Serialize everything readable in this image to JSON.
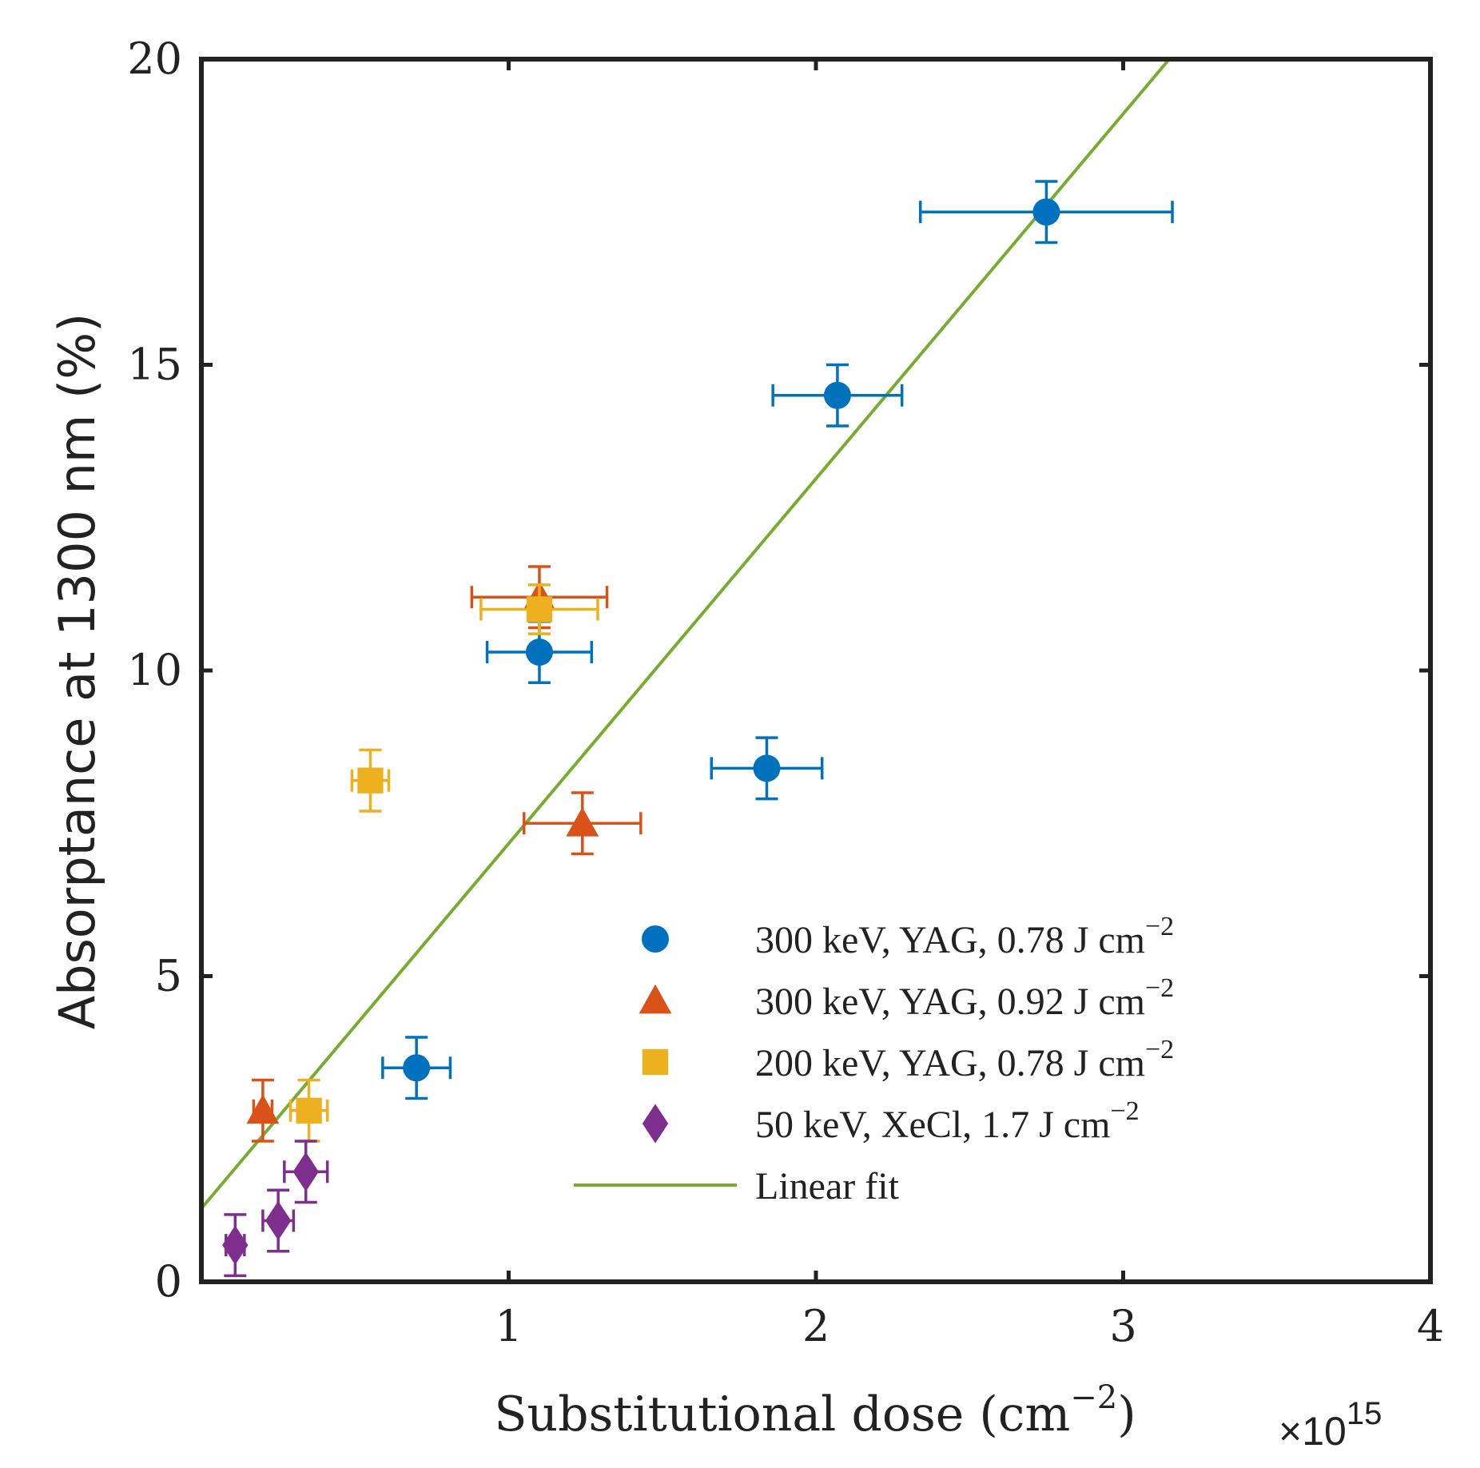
{
  "chart_data": {
    "type": "scatter",
    "title": "",
    "xlabel": "Substitutional dose (cm",
    "xlabel_sup": "−2",
    "xlabel_close": ")",
    "ylabel": "Absorptance at 1300 nm (%)",
    "x_multiplier": "×10",
    "x_multiplier_exp": "15",
    "xlim": [
      0,
      4
    ],
    "ylim": [
      0,
      20
    ],
    "xticks": [
      1,
      2,
      3,
      4
    ],
    "xtick_labels": [
      "1",
      "2",
      "3",
      "4"
    ],
    "yticks": [
      0,
      5,
      10,
      15,
      20
    ],
    "ytick_labels": [
      "0",
      "5",
      "10",
      "15",
      "20"
    ],
    "grid": false,
    "legend_position": "bottom-right",
    "series": [
      {
        "name": "300 keV, YAG, 0.78 J cm",
        "name_sup": "−2",
        "marker": "circle",
        "color": "#0072BD",
        "points": [
          {
            "x": 2.75,
            "y": 17.5,
            "xerr": 0.41,
            "yerr": 0.5
          },
          {
            "x": 2.07,
            "y": 14.5,
            "xerr": 0.21,
            "yerr": 0.5
          },
          {
            "x": 1.1,
            "y": 10.3,
            "xerr": 0.17,
            "yerr": 0.5
          },
          {
            "x": 1.84,
            "y": 8.4,
            "xerr": 0.18,
            "yerr": 0.5
          },
          {
            "x": 0.7,
            "y": 3.5,
            "xerr": 0.11,
            "yerr": 0.5
          }
        ]
      },
      {
        "name": "300 keV, YAG, 0.92 J cm",
        "name_sup": "−2",
        "marker": "triangle",
        "color": "#D95319",
        "points": [
          {
            "x": 1.1,
            "y": 11.2,
            "xerr": 0.22,
            "yerr": 0.5
          },
          {
            "x": 1.24,
            "y": 7.5,
            "xerr": 0.19,
            "yerr": 0.5
          },
          {
            "x": 0.2,
            "y": 2.8,
            "xerr": 0.03,
            "yerr": 0.5
          }
        ]
      },
      {
        "name": "200 keV, YAG, 0.78 J cm",
        "name_sup": "−2",
        "marker": "square",
        "color": "#EDB120",
        "points": [
          {
            "x": 1.1,
            "y": 11.0,
            "xerr": 0.19,
            "yerr": 0.4
          },
          {
            "x": 0.55,
            "y": 8.2,
            "xerr": 0.06,
            "yerr": 0.5
          },
          {
            "x": 0.35,
            "y": 2.8,
            "xerr": 0.06,
            "yerr": 0.5
          }
        ]
      },
      {
        "name": "50 keV, XeCl, 1.7 J cm",
        "name_sup": "−2",
        "marker": "diamond",
        "color": "#7E2F8E",
        "points": [
          {
            "x": 0.11,
            "y": 0.6,
            "xerr": 0.03,
            "yerr": 0.5
          },
          {
            "x": 0.25,
            "y": 1.0,
            "xerr": 0.05,
            "yerr": 0.5
          },
          {
            "x": 0.34,
            "y": 1.8,
            "xerr": 0.07,
            "yerr": 0.5
          }
        ]
      }
    ],
    "fit": {
      "name": "Linear fit",
      "color": "#77AC30",
      "x": [
        0.0,
        3.15
      ],
      "y": [
        1.2,
        20.0
      ]
    }
  }
}
